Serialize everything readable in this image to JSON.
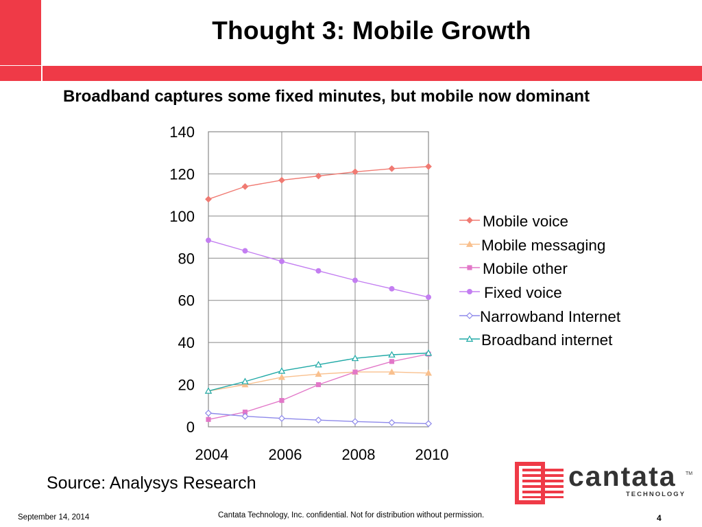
{
  "slide": {
    "title": "Thought 3: Mobile Growth",
    "subtitle": "Broadband captures some fixed minutes, but mobile now dominant",
    "source": "Source: Analysys Research",
    "footer_date": "September 14, 2014",
    "footer_confidential": "Cantata Technology, Inc. confidential. Not for distribution without permission.",
    "page_number": "4",
    "logo_text": "cantata",
    "logo_subtext": "TECHNOLOGY",
    "logo_tm": "TM",
    "colors": {
      "accent_red": "#ef3a47"
    }
  },
  "chart_data": {
    "type": "line",
    "x": [
      2004,
      2005,
      2006,
      2007,
      2008,
      2009,
      2010
    ],
    "x_ticks": [
      "2004",
      "2006",
      "2008",
      "2010"
    ],
    "y_ticks": [
      "0",
      "20",
      "40",
      "60",
      "80",
      "100",
      "120",
      "140"
    ],
    "ylim": [
      0,
      140
    ],
    "grid": true,
    "legend_position": "right",
    "series": [
      {
        "name": "Mobile voice",
        "color": "#f07a72",
        "marker": "diamond",
        "values": [
          108,
          114,
          117,
          119,
          121,
          122.5,
          123.5
        ]
      },
      {
        "name": "Mobile messaging",
        "color": "#f9c08e",
        "marker": "triangle",
        "values": [
          17,
          20,
          23.5,
          25,
          26,
          26,
          25.5
        ]
      },
      {
        "name": "Mobile other",
        "color": "#e277c8",
        "marker": "square",
        "values": [
          3.5,
          7,
          12.5,
          20,
          26,
          31,
          34.5
        ]
      },
      {
        "name": "Fixed voice",
        "color": "#c37ef1",
        "marker": "circle",
        "values": [
          88.5,
          83.5,
          78.5,
          74,
          69.5,
          65.5,
          61.5
        ]
      },
      {
        "name": "Narrowband Internet",
        "color": "#8d88ea",
        "marker": "diamond-open",
        "values": [
          6.5,
          5,
          4,
          3.2,
          2.5,
          2,
          1.5
        ]
      },
      {
        "name": "Broadband internet",
        "color": "#1fa9a6",
        "marker": "triangle-open",
        "values": [
          17,
          21.5,
          26.5,
          29.5,
          32.5,
          34.2,
          35
        ]
      }
    ]
  }
}
